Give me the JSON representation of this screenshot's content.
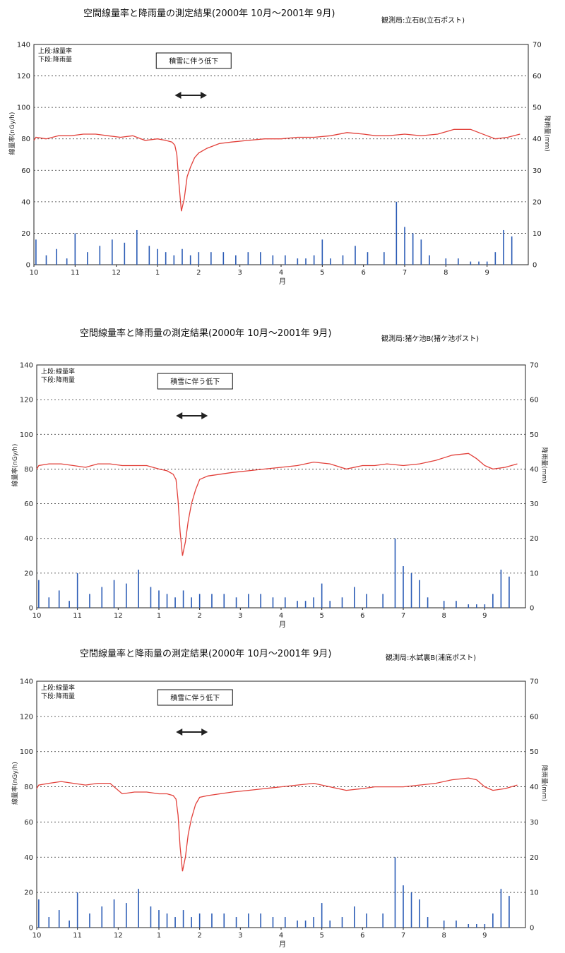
{
  "charts": [
    {
      "title": "空間線量率と降雨量の測定結果(2000年 10月〜2001年 9月)",
      "station": "観測局:立石B(立石ポスト)",
      "legend_lines": [
        "上段:線量率",
        "下段:降雨量"
      ],
      "annotation": "積雪に伴う低下",
      "left_axis_label": "線量率(nGy/h)",
      "right_axis_label": "降雨量(mm)",
      "x_axis_label": "月",
      "left_ticks": [
        "0",
        "20",
        "40",
        "60",
        "80",
        "100",
        "120",
        "140"
      ],
      "right_ticks": [
        "0",
        "10",
        "20",
        "30",
        "40",
        "50",
        "60",
        "70"
      ],
      "month_labels": [
        "10",
        "11",
        "12",
        "1",
        "2",
        "3",
        "4",
        "5",
        "6",
        "7",
        "8",
        "9"
      ]
    },
    {
      "title": "空間線量率と降雨量の測定結果(2000年 10月〜2001年 9月)",
      "station": "観測局:猪ケ池B(猪ケ池ポスト)",
      "legend_lines": [
        "上段:線量率",
        "下段:降雨量"
      ],
      "annotation": "積雪に伴う低下",
      "left_axis_label": "線量率(nGy/h)",
      "right_axis_label": "降雨量(mm)",
      "x_axis_label": "月",
      "left_ticks": [
        "0",
        "20",
        "40",
        "60",
        "80",
        "100",
        "120",
        "140"
      ],
      "right_ticks": [
        "0",
        "10",
        "20",
        "30",
        "40",
        "50",
        "60",
        "70"
      ],
      "month_labels": [
        "10",
        "11",
        "12",
        "1",
        "2",
        "3",
        "4",
        "5",
        "6",
        "7",
        "8",
        "9"
      ]
    },
    {
      "title": "空間線量率と降雨量の測定結果(2000年 10月〜2001年 9月)",
      "station": "観測局:水試裏B(浦底ポスト)",
      "legend_lines": [
        "上段:線量率",
        "下段:降雨量"
      ],
      "annotation": "積雪に伴う低下",
      "left_axis_label": "線量率(nGy/h)",
      "right_axis_label": "降雨量(mm)",
      "x_axis_label": "月",
      "left_ticks": [
        "0",
        "20",
        "40",
        "60",
        "80",
        "100",
        "120",
        "140"
      ],
      "right_ticks": [
        "0",
        "10",
        "20",
        "30",
        "40",
        "50",
        "60",
        "70"
      ],
      "month_labels": [
        "10",
        "11",
        "12",
        "1",
        "2",
        "3",
        "4",
        "5",
        "6",
        "7",
        "8",
        "9"
      ]
    }
  ],
  "chart_data": [
    {
      "type": "line",
      "station": "立石B",
      "x_unit": "month",
      "x_range": [
        0,
        12
      ],
      "ylim_left": [
        0,
        140
      ],
      "ylim_right": [
        0,
        70
      ],
      "grid": true,
      "colors": {
        "dose": "#e2403a",
        "rain": "#2a5bb5"
      },
      "series": [
        {
          "name": "線量率",
          "axis": "left",
          "color": "#e2403a",
          "x": [
            0,
            0.05,
            0.3,
            0.6,
            0.9,
            1.2,
            1.5,
            1.8,
            2.1,
            2.4,
            2.7,
            3.0,
            3.2,
            3.35,
            3.42,
            3.47,
            3.52,
            3.58,
            3.65,
            3.72,
            3.8,
            3.9,
            4.0,
            4.2,
            4.5,
            4.8,
            5.2,
            5.6,
            6.0,
            6.4,
            6.8,
            7.2,
            7.6,
            8.0,
            8.3,
            8.6,
            9.0,
            9.4,
            9.8,
            10.2,
            10.6,
            10.8,
            11.0,
            11.2,
            11.5,
            11.8
          ],
          "y": [
            79,
            81,
            80,
            82,
            82,
            83,
            83,
            82,
            81,
            82,
            79,
            80,
            79,
            78,
            76,
            70,
            52,
            34,
            42,
            56,
            62,
            68,
            71,
            74,
            77,
            78,
            79,
            80,
            80,
            81,
            81,
            82,
            84,
            83,
            82,
            82,
            83,
            82,
            83,
            86,
            86,
            84,
            82,
            80,
            81,
            83
          ]
        },
        {
          "name": "降雨量",
          "axis": "right",
          "color": "#2a5bb5",
          "x": [
            0.05,
            0.3,
            0.55,
            0.8,
            1.0,
            1.3,
            1.6,
            1.9,
            2.2,
            2.5,
            2.8,
            3.0,
            3.2,
            3.4,
            3.6,
            3.8,
            4.0,
            4.3,
            4.6,
            4.9,
            5.2,
            5.5,
            5.8,
            6.1,
            6.4,
            6.6,
            6.8,
            7.0,
            7.2,
            7.5,
            7.8,
            8.1,
            8.5,
            8.8,
            9.0,
            9.2,
            9.4,
            9.6,
            10.0,
            10.3,
            10.6,
            10.8,
            11.0,
            11.2,
            11.4,
            11.6
          ],
          "y": [
            8,
            3,
            5,
            2,
            10,
            4,
            6,
            8,
            7,
            11,
            6,
            5,
            4,
            3,
            5,
            3,
            4,
            4,
            4,
            3,
            4,
            4,
            3,
            3,
            2,
            2,
            3,
            8,
            2,
            3,
            6,
            4,
            4,
            20,
            12,
            10,
            8,
            3,
            2,
            2,
            1,
            1,
            1,
            4,
            11,
            9
          ]
        }
      ]
    },
    {
      "type": "line",
      "station": "猪ケ池B",
      "x_unit": "month",
      "x_range": [
        0,
        12
      ],
      "ylim_left": [
        0,
        140
      ],
      "ylim_right": [
        0,
        70
      ],
      "grid": true,
      "colors": {
        "dose": "#e2403a",
        "rain": "#2a5bb5"
      },
      "series": [
        {
          "name": "線量率",
          "axis": "left",
          "color": "#e2403a",
          "x": [
            0,
            0.05,
            0.3,
            0.6,
            0.9,
            1.2,
            1.5,
            1.8,
            2.1,
            2.4,
            2.7,
            3.0,
            3.2,
            3.35,
            3.42,
            3.47,
            3.52,
            3.58,
            3.65,
            3.72,
            3.8,
            3.9,
            4.0,
            4.2,
            4.5,
            4.8,
            5.2,
            5.6,
            6.0,
            6.4,
            6.8,
            7.2,
            7.6,
            8.0,
            8.3,
            8.6,
            9.0,
            9.4,
            9.8,
            10.2,
            10.6,
            10.8,
            11.0,
            11.2,
            11.5,
            11.8
          ],
          "y": [
            80,
            82,
            83,
            83,
            82,
            81,
            83,
            83,
            82,
            82,
            82,
            80,
            79,
            77,
            74,
            62,
            44,
            30,
            38,
            50,
            60,
            68,
            74,
            76,
            77,
            78,
            79,
            80,
            81,
            82,
            84,
            83,
            80,
            82,
            82,
            83,
            82,
            83,
            85,
            88,
            89,
            86,
            82,
            80,
            81,
            83
          ]
        },
        {
          "name": "降雨量",
          "axis": "right",
          "color": "#2a5bb5",
          "x": [
            0.05,
            0.3,
            0.55,
            0.8,
            1.0,
            1.3,
            1.6,
            1.9,
            2.2,
            2.5,
            2.8,
            3.0,
            3.2,
            3.4,
            3.6,
            3.8,
            4.0,
            4.3,
            4.6,
            4.9,
            5.2,
            5.5,
            5.8,
            6.1,
            6.4,
            6.6,
            6.8,
            7.0,
            7.2,
            7.5,
            7.8,
            8.1,
            8.5,
            8.8,
            9.0,
            9.2,
            9.4,
            9.6,
            10.0,
            10.3,
            10.6,
            10.8,
            11.0,
            11.2,
            11.4,
            11.6
          ],
          "y": [
            8,
            3,
            5,
            2,
            10,
            4,
            6,
            8,
            7,
            11,
            6,
            5,
            4,
            3,
            5,
            3,
            4,
            4,
            4,
            3,
            4,
            4,
            3,
            3,
            2,
            2,
            3,
            7,
            2,
            3,
            6,
            4,
            4,
            20,
            12,
            10,
            8,
            3,
            2,
            2,
            1,
            1,
            1,
            4,
            11,
            9
          ]
        }
      ]
    },
    {
      "type": "line",
      "station": "水試裏B",
      "x_unit": "month",
      "x_range": [
        0,
        12
      ],
      "ylim_left": [
        0,
        140
      ],
      "ylim_right": [
        0,
        70
      ],
      "grid": true,
      "colors": {
        "dose": "#e2403a",
        "rain": "#2a5bb5"
      },
      "series": [
        {
          "name": "線量率",
          "axis": "left",
          "color": "#e2403a",
          "x": [
            0,
            0.05,
            0.3,
            0.6,
            0.9,
            1.2,
            1.5,
            1.8,
            2.1,
            2.4,
            2.7,
            3.0,
            3.2,
            3.35,
            3.42,
            3.47,
            3.52,
            3.58,
            3.65,
            3.72,
            3.8,
            3.9,
            4.0,
            4.2,
            4.5,
            4.8,
            5.2,
            5.6,
            6.0,
            6.4,
            6.8,
            7.2,
            7.6,
            8.0,
            8.3,
            8.6,
            9.0,
            9.4,
            9.8,
            10.2,
            10.6,
            10.8,
            11.0,
            11.2,
            11.5,
            11.8
          ],
          "y": [
            79,
            81,
            82,
            83,
            82,
            81,
            82,
            82,
            76,
            77,
            77,
            76,
            76,
            75,
            73,
            64,
            46,
            32,
            40,
            53,
            62,
            70,
            74,
            75,
            76,
            77,
            78,
            79,
            80,
            81,
            82,
            80,
            78,
            79,
            80,
            80,
            80,
            81,
            82,
            84,
            85,
            84,
            80,
            78,
            79,
            81
          ]
        },
        {
          "name": "降雨量",
          "axis": "right",
          "color": "#2a5bb5",
          "x": [
            0.05,
            0.3,
            0.55,
            0.8,
            1.0,
            1.3,
            1.6,
            1.9,
            2.2,
            2.5,
            2.8,
            3.0,
            3.2,
            3.4,
            3.6,
            3.8,
            4.0,
            4.3,
            4.6,
            4.9,
            5.2,
            5.5,
            5.8,
            6.1,
            6.4,
            6.6,
            6.8,
            7.0,
            7.2,
            7.5,
            7.8,
            8.1,
            8.5,
            8.8,
            9.0,
            9.2,
            9.4,
            9.6,
            10.0,
            10.3,
            10.6,
            10.8,
            11.0,
            11.2,
            11.4,
            11.6
          ],
          "y": [
            8,
            3,
            5,
            2,
            10,
            4,
            6,
            8,
            7,
            11,
            6,
            5,
            4,
            3,
            5,
            3,
            4,
            4,
            4,
            3,
            4,
            4,
            3,
            3,
            2,
            2,
            3,
            7,
            2,
            3,
            6,
            4,
            4,
            20,
            12,
            10,
            8,
            3,
            2,
            2,
            1,
            1,
            1,
            4,
            11,
            9
          ]
        }
      ]
    }
  ]
}
